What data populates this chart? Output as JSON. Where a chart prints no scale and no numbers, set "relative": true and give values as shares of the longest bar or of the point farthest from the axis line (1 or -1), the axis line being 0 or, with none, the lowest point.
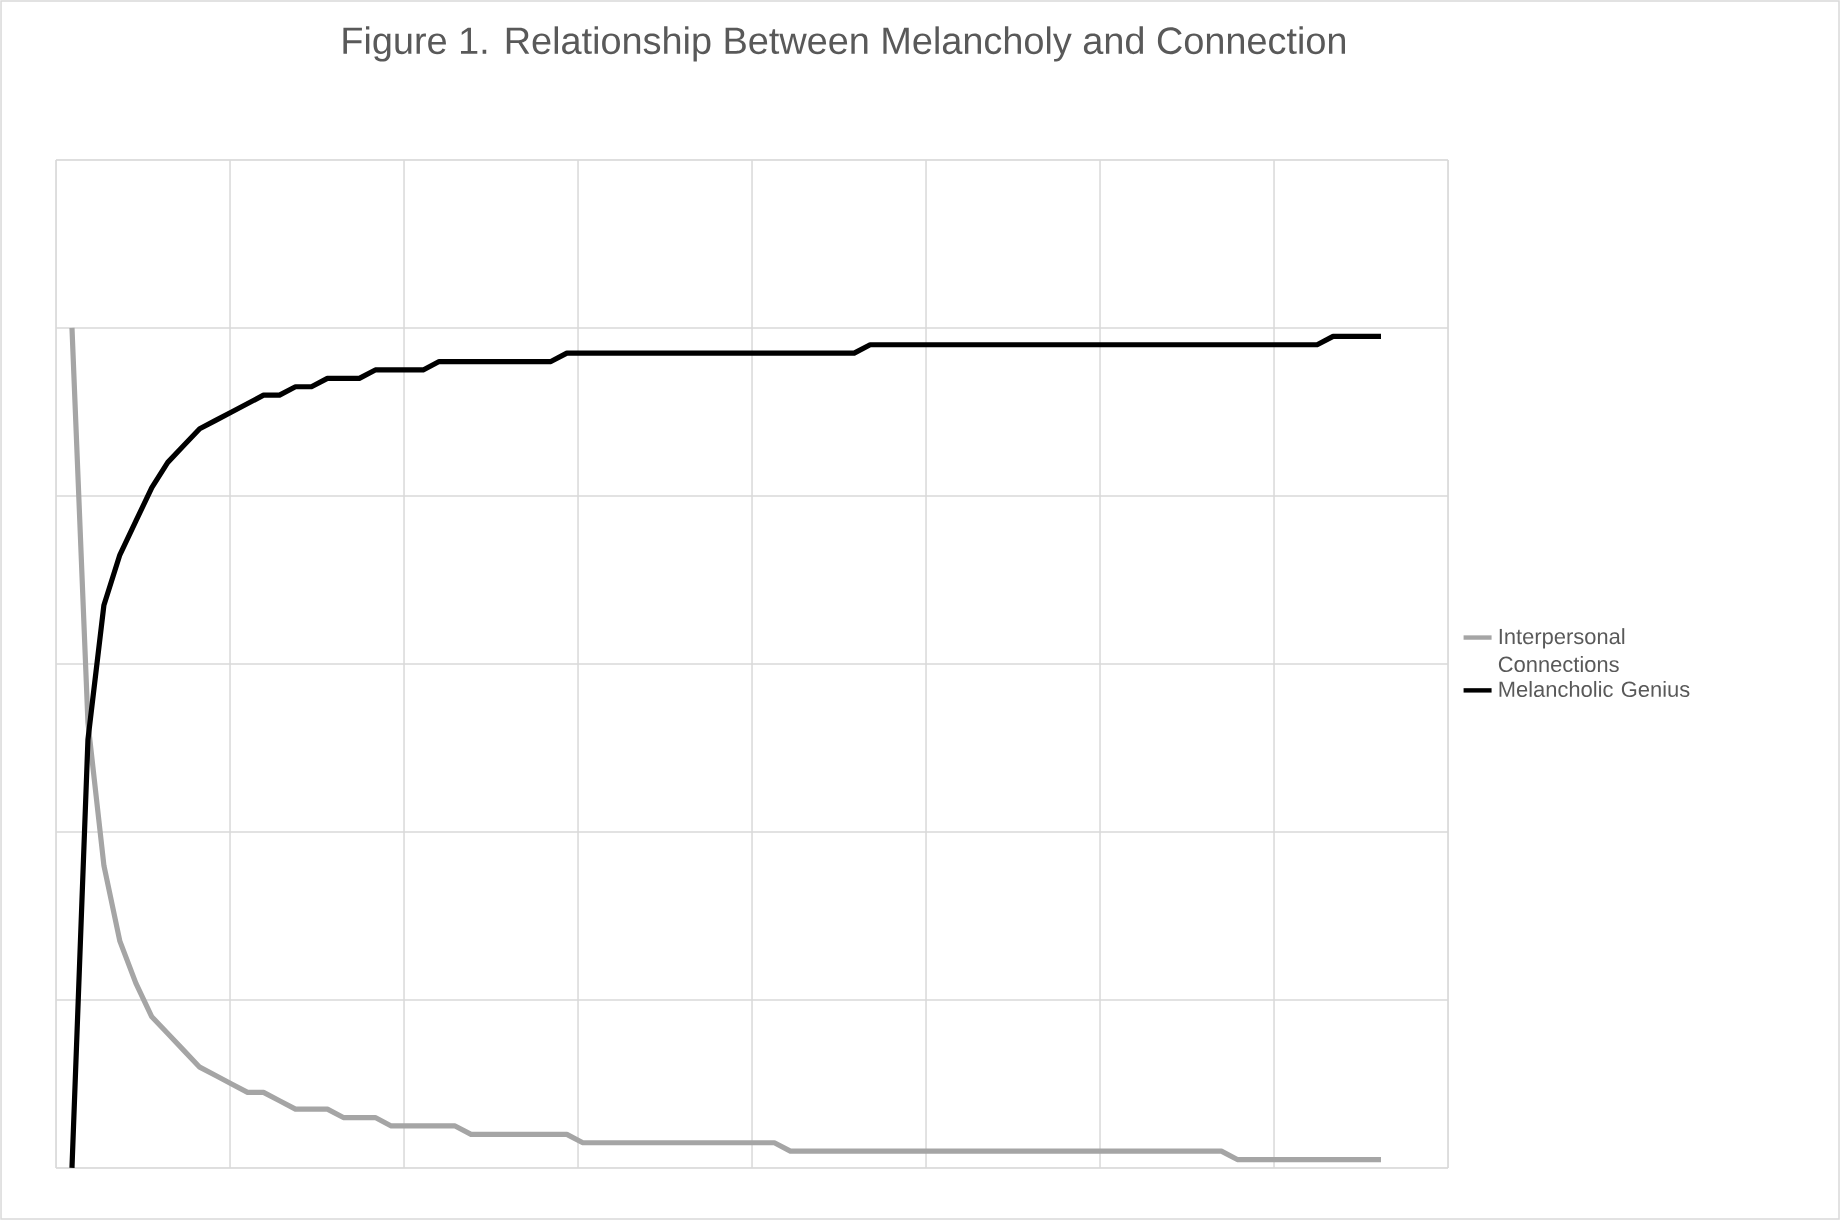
{
  "chart_data": {
    "type": "line",
    "title": "Figure 1. Relationship Between Melancholy and Connection",
    "relative": true,
    "grid": true,
    "legend": "right",
    "marker": "none",
    "line_style": "solid",
    "categories": [
      null,
      null,
      null,
      null,
      null,
      null,
      null,
      null,
      null,
      null,
      null,
      null,
      null,
      null,
      null,
      null,
      null,
      null,
      null,
      null,
      null,
      null,
      null,
      null,
      null,
      null,
      null,
      null,
      null,
      null,
      null,
      null,
      null,
      null,
      null,
      null,
      null,
      null,
      null,
      null,
      null,
      null,
      null,
      null,
      null,
      null,
      null,
      null,
      null,
      null,
      null,
      null,
      null,
      null,
      null,
      null,
      null,
      null,
      null,
      null,
      null,
      null,
      null,
      null,
      null,
      null,
      null,
      null,
      null,
      null,
      null,
      null,
      null,
      null,
      null,
      null,
      null,
      null,
      null,
      null,
      null,
      null,
      null
    ],
    "series": [
      {
        "name": "Interpersonal Connections",
        "color": "#a5a5a5",
        "values": [
          1.0,
          0.53,
          0.36,
          0.27,
          0.22,
          0.18,
          0.16,
          0.14,
          0.12,
          0.11,
          0.1,
          0.09,
          0.09,
          0.08,
          0.07,
          0.07,
          0.07,
          0.06,
          0.06,
          0.06,
          0.05,
          0.05,
          0.05,
          0.05,
          0.05,
          0.04,
          0.04,
          0.04,
          0.04,
          0.04,
          0.04,
          0.04,
          0.03,
          0.03,
          0.03,
          0.03,
          0.03,
          0.03,
          0.03,
          0.03,
          0.03,
          0.03,
          0.03,
          0.03,
          0.03,
          0.02,
          0.02,
          0.02,
          0.02,
          0.02,
          0.02,
          0.02,
          0.02,
          0.02,
          0.02,
          0.02,
          0.02,
          0.02,
          0.02,
          0.02,
          0.02,
          0.02,
          0.02,
          0.02,
          0.02,
          0.02,
          0.02,
          0.02,
          0.02,
          0.02,
          0.02,
          0.02,
          0.02,
          0.01,
          0.01,
          0.01,
          0.01,
          0.01,
          0.01,
          0.01,
          0.01,
          0.01,
          0.01
        ]
      },
      {
        "name": "Melancholic Genius",
        "color": "#000000",
        "values": [
          0.0,
          0.51,
          0.67,
          0.73,
          0.77,
          0.81,
          0.84,
          0.86,
          0.88,
          0.89,
          0.9,
          0.91,
          0.92,
          0.92,
          0.93,
          0.93,
          0.94,
          0.94,
          0.94,
          0.95,
          0.95,
          0.95,
          0.95,
          0.96,
          0.96,
          0.96,
          0.96,
          0.96,
          0.96,
          0.96,
          0.96,
          0.97,
          0.97,
          0.97,
          0.97,
          0.97,
          0.97,
          0.97,
          0.97,
          0.97,
          0.97,
          0.97,
          0.97,
          0.97,
          0.97,
          0.97,
          0.97,
          0.97,
          0.97,
          0.97,
          0.98,
          0.98,
          0.98,
          0.98,
          0.98,
          0.98,
          0.98,
          0.98,
          0.98,
          0.98,
          0.98,
          0.98,
          0.98,
          0.98,
          0.98,
          0.98,
          0.98,
          0.98,
          0.98,
          0.98,
          0.98,
          0.98,
          0.98,
          0.98,
          0.98,
          0.98,
          0.98,
          0.98,
          0.98,
          0.99,
          0.99,
          0.99,
          0.99
        ]
      }
    ]
  }
}
